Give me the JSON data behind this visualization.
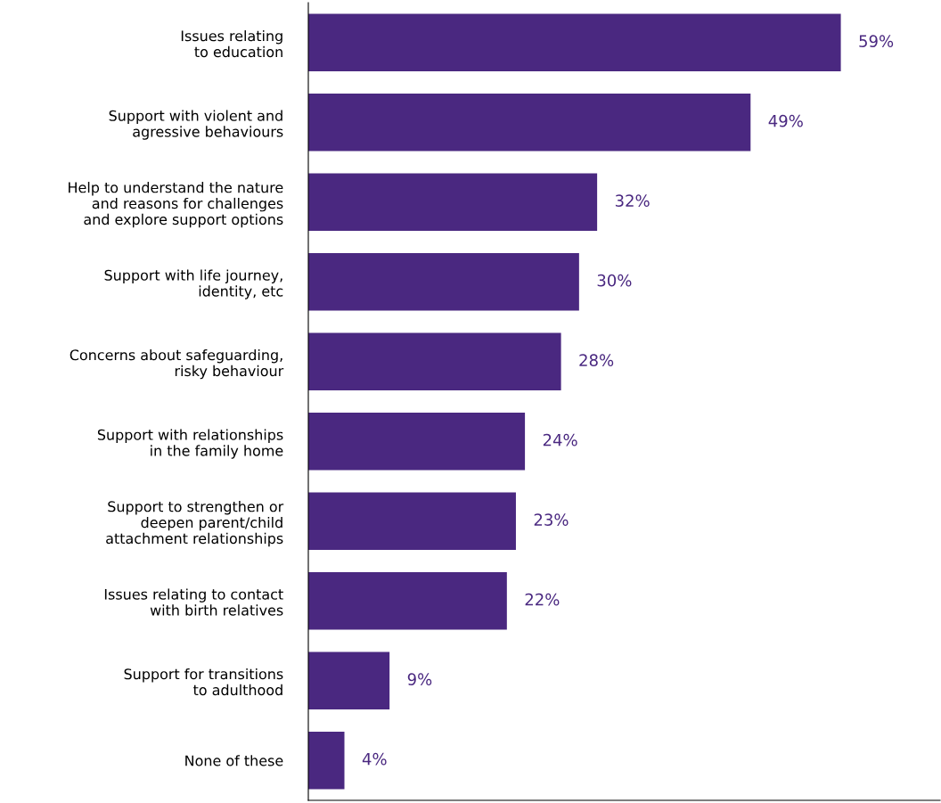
{
  "chart_data": {
    "type": "bar",
    "orientation": "horizontal",
    "categories": [
      "Issues relating\nto education",
      "Support with violent and\nagressive behaviours",
      "Help to understand the nature\nand reasons for challenges\nand explore support options",
      "Support with life journey,\nidentity, etc",
      "Concerns about safeguarding,\nrisky behaviour",
      "Support with relationships\nin the family home",
      "Support to strengthen or\ndeepen parent/child\nattachment relationships",
      "Issues relating to contact\nwith birth relatives",
      "Support for transitions\nto adulthood",
      "None of these"
    ],
    "values": [
      59,
      49,
      32,
      30,
      28,
      24,
      23,
      22,
      9,
      4
    ],
    "value_labels": [
      "59%",
      "49%",
      "32%",
      "30%",
      "28%",
      "24%",
      "23%",
      "22%",
      "9%",
      "4%"
    ],
    "color": "#4a2880",
    "xlim": [
      0,
      70
    ],
    "tick_labels": "y",
    "grid": false,
    "legend": false
  }
}
